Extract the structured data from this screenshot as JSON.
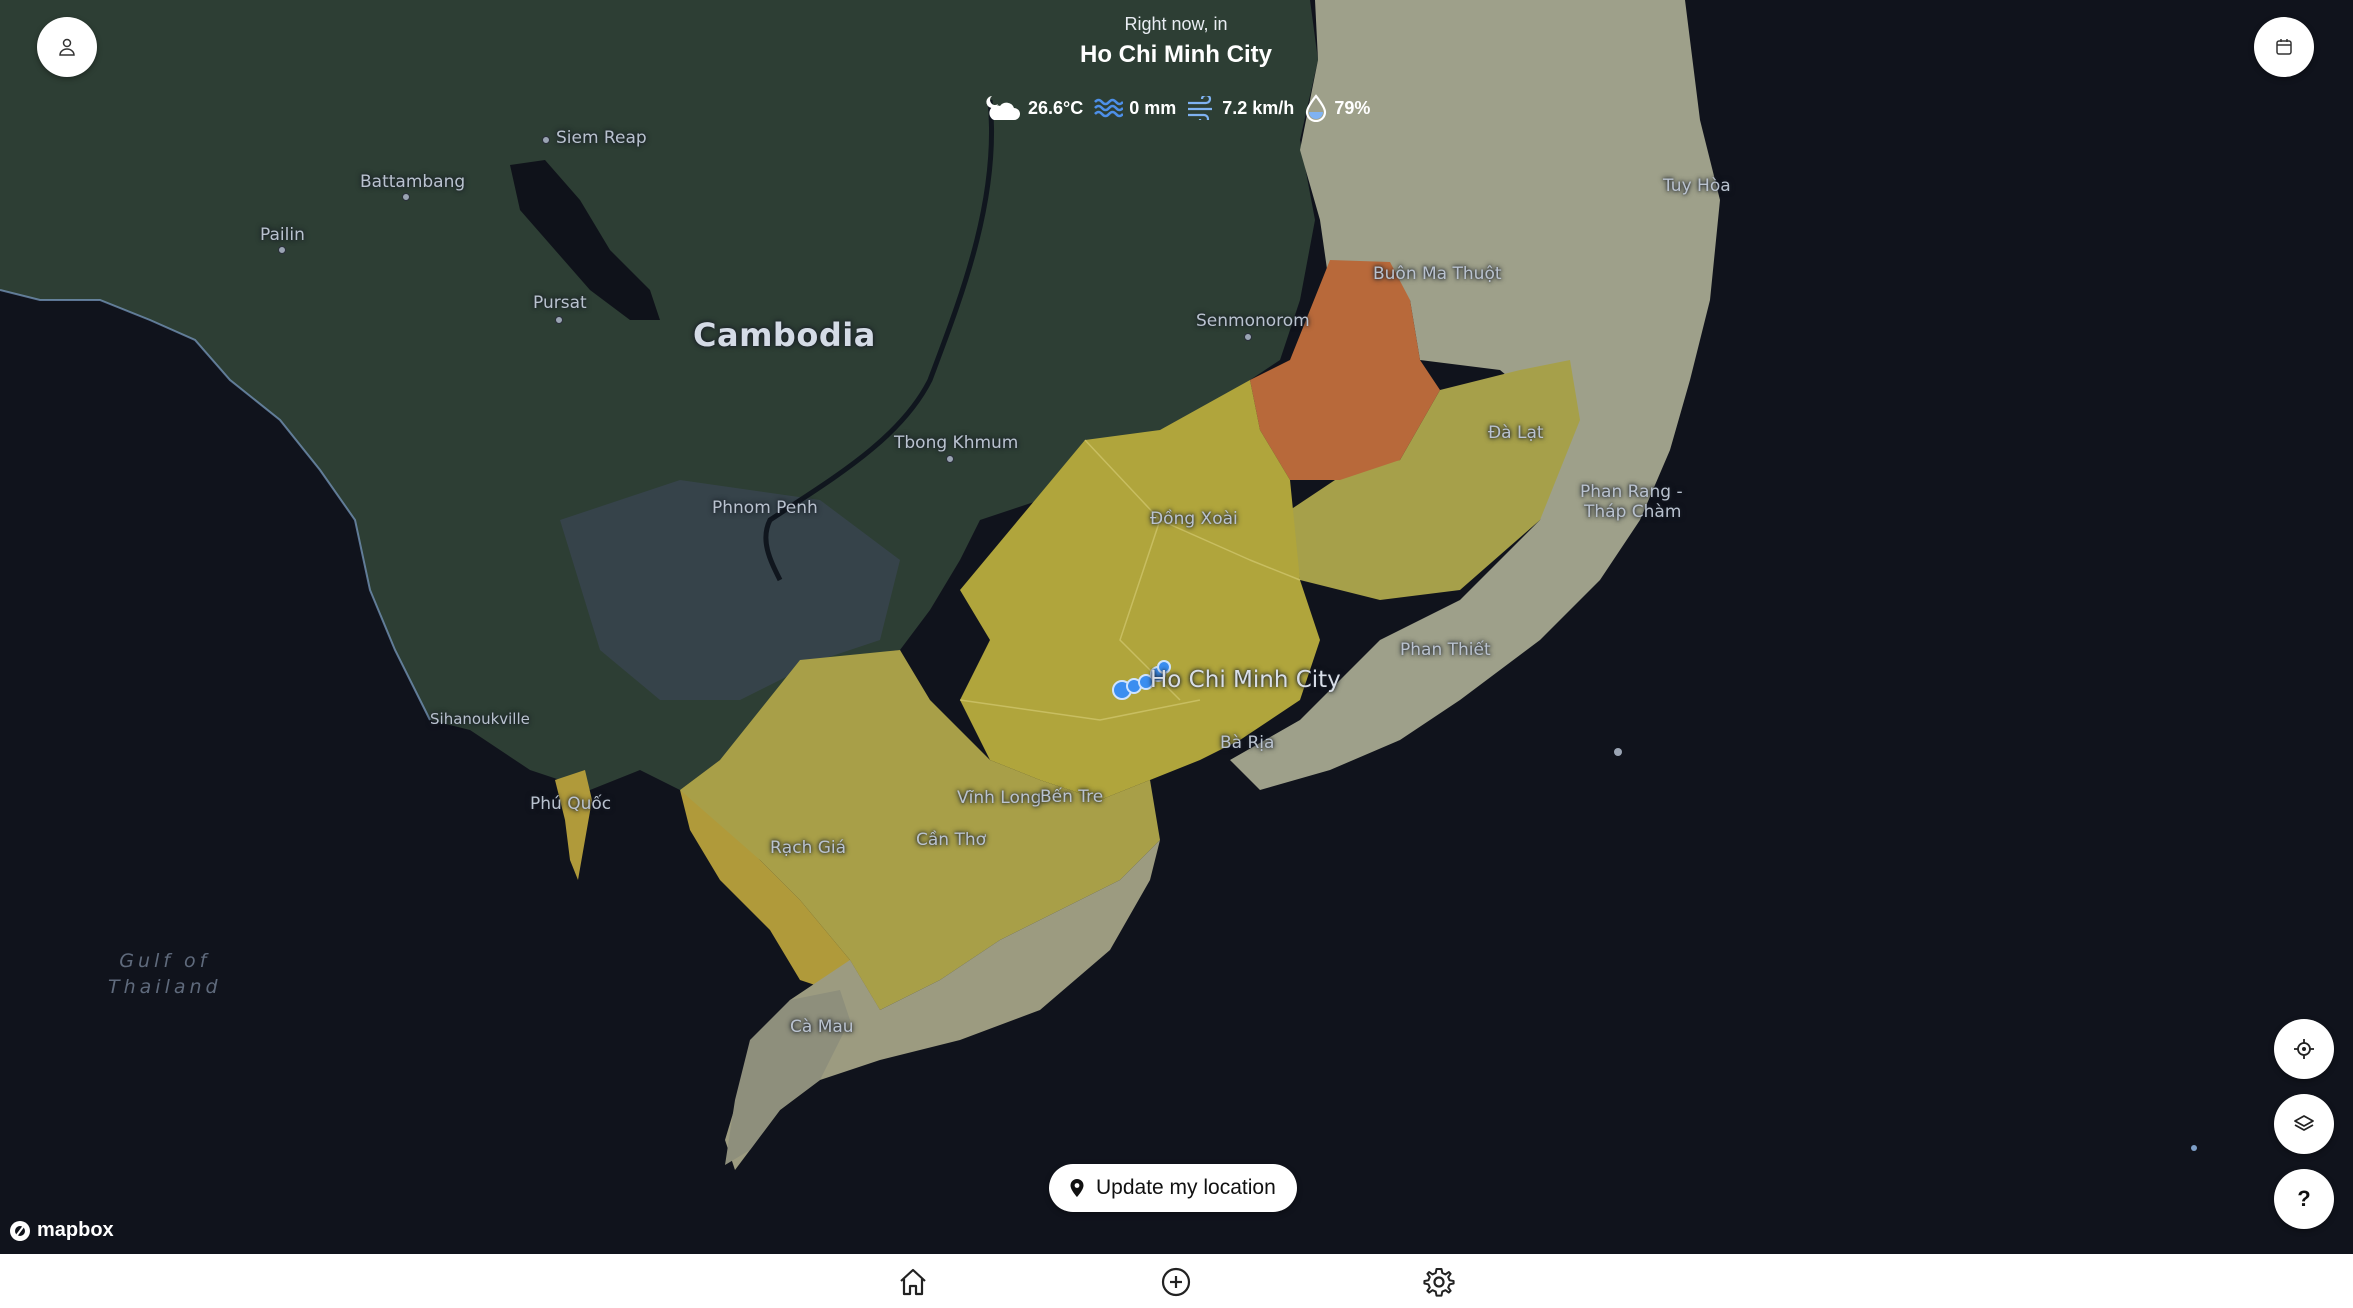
{
  "header": {
    "subtitle": "Right now, in",
    "city": "Ho Chi Minh City"
  },
  "weather": {
    "temperature": "26.6°C",
    "precipitation": "0 mm",
    "wind": "7.2 km/h",
    "humidity": "79%"
  },
  "map": {
    "labels": {
      "siem_reap": "Siem Reap",
      "battambang": "Battambang",
      "pailin": "Pailin",
      "pursat": "Pursat",
      "cambodia": "Cambodia",
      "senmonorom": "Senmonorom",
      "buon_ma_thuot": "Buôn Ma Thuột",
      "tuy_hoa": "Tuy Hòa",
      "tbong_khmum": "Tbong Khmum",
      "da_lat": "Đà Lạt",
      "phnom_penh": "Phnom Penh",
      "dong_xoai": "Đồng Xoài",
      "phan_rang_1": "Phan Rang -",
      "phan_rang_2": "Tháp Chàm",
      "phan_thiet": "Phan Thiết",
      "ho_chi_minh_city": "Ho Chi Minh City",
      "sihanoukville": "Sihanoukville",
      "ba_ria": "Bà Rịa",
      "phu_quoc": "Phú Quốc",
      "vinh_long": "Vĩnh Long",
      "ben_tre": "Bến Tre",
      "can_tho": "Cần Thơ",
      "rach_gia": "Rạch Giá",
      "gulf_1": "Gulf of",
      "gulf_2": "Thailand",
      "ca_mau": "Cà Mau"
    },
    "attribution": "mapbox"
  },
  "actions": {
    "update_location": "Update my location",
    "help": "?"
  },
  "icons": {
    "profile": "person-icon",
    "calendar": "calendar-icon",
    "locate": "crosshair-icon",
    "layers": "layers-icon",
    "help": "question-icon",
    "home": "home-icon",
    "add": "plus-circle-icon",
    "settings": "gear-icon"
  },
  "colors": {
    "map_background": "#10131c",
    "land_dark": "#2d3e34",
    "region_yellow": "#b7a93e",
    "region_orange": "#b8693a",
    "region_pale": "#9ea08a",
    "marker_blue": "#3b8ef0"
  }
}
